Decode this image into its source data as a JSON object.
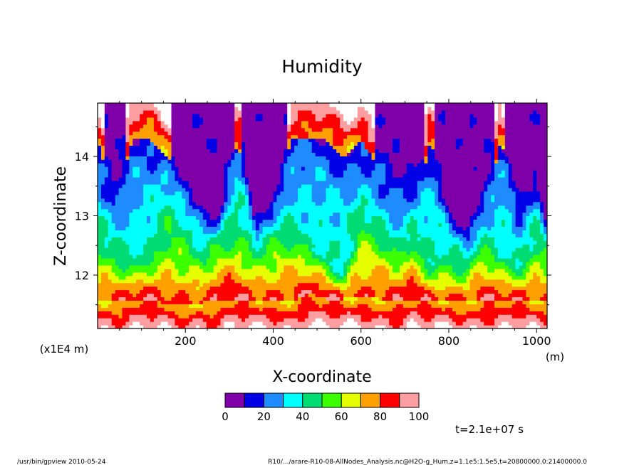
{
  "chart_data": {
    "type": "heatmap",
    "title": "Humidity",
    "xlabel": "X-coordinate",
    "ylabel": "Z-coordinate",
    "x_unit": "(m)",
    "y_unit": "(x1E4 m)",
    "xlim": [
      0,
      1024
    ],
    "ylim": [
      11.1,
      14.9
    ],
    "x_ticks": [
      200,
      400,
      600,
      800,
      1000
    ],
    "x_tick_labels": [
      "200",
      "400",
      "600",
      "800",
      "1000"
    ],
    "y_ticks": [
      12,
      13,
      14
    ],
    "y_tick_labels": [
      "12",
      "13",
      "14"
    ],
    "colorbar": {
      "levels": [
        0,
        10,
        20,
        30,
        40,
        50,
        60,
        70,
        80,
        90,
        100
      ],
      "labels": [
        "0",
        "20",
        "40",
        "60",
        "80",
        "100"
      ],
      "label_values": [
        0,
        20,
        40,
        60,
        80,
        100
      ],
      "colors": [
        "#7f00a8",
        "#0000e6",
        "#1e8cff",
        "#00ffff",
        "#00dc73",
        "#3cff00",
        "#e6ff00",
        "#ffa000",
        "#ff0000",
        "#ff9ea0"
      ],
      "over_color": "#ffffff"
    },
    "columns": [
      {
        "x": 0,
        "low": 11.55,
        "mid": 12.5,
        "top": 14.9
      },
      {
        "x": 40,
        "low": 11.55,
        "mid": 12.3,
        "top": 13.8
      },
      {
        "x": 80,
        "low": 11.6,
        "mid": 12.1,
        "top": 14.9
      },
      {
        "x": 120,
        "low": 11.6,
        "mid": 12.4,
        "top": 14.9
      },
      {
        "x": 160,
        "low": 11.5,
        "mid": 12.9,
        "top": 14.6
      },
      {
        "x": 200,
        "low": 11.5,
        "mid": 12.6,
        "top": 13.9
      },
      {
        "x": 240,
        "low": 11.55,
        "mid": 12.2,
        "top": 13.4
      },
      {
        "x": 280,
        "low": 11.55,
        "mid": 12.7,
        "top": 13.1
      },
      {
        "x": 320,
        "low": 11.6,
        "mid": 12.9,
        "top": 14.9
      },
      {
        "x": 360,
        "low": 11.55,
        "mid": 12.5,
        "top": 12.8
      },
      {
        "x": 400,
        "low": 11.6,
        "mid": 12.6,
        "top": 13.3
      },
      {
        "x": 440,
        "low": 11.55,
        "mid": 12.7,
        "top": 14.9
      },
      {
        "x": 480,
        "low": 11.7,
        "mid": 12.5,
        "top": 14.9
      },
      {
        "x": 520,
        "low": 11.6,
        "mid": 12.3,
        "top": 14.9
      },
      {
        "x": 560,
        "low": 11.6,
        "mid": 12.0,
        "top": 14.6
      },
      {
        "x": 600,
        "low": 11.65,
        "mid": 12.9,
        "top": 14.9
      },
      {
        "x": 640,
        "low": 11.6,
        "mid": 12.7,
        "top": 14.4
      },
      {
        "x": 680,
        "low": 11.55,
        "mid": 12.4,
        "top": 13.9
      },
      {
        "x": 720,
        "low": 11.6,
        "mid": 12.8,
        "top": 13.6
      },
      {
        "x": 760,
        "low": 11.55,
        "mid": 12.2,
        "top": 14.9
      },
      {
        "x": 800,
        "low": 11.6,
        "mid": 12.3,
        "top": 13.2
      },
      {
        "x": 840,
        "low": 11.55,
        "mid": 12.1,
        "top": 12.8
      },
      {
        "x": 880,
        "low": 11.6,
        "mid": 12.6,
        "top": 13.6
      },
      {
        "x": 920,
        "low": 11.55,
        "mid": 12.3,
        "top": 14.9
      },
      {
        "x": 960,
        "low": 11.6,
        "mid": 12.2,
        "top": 13.2
      },
      {
        "x": 1000,
        "low": 11.55,
        "mid": 12.6,
        "top": 13.9
      },
      {
        "x": 1024,
        "low": 11.55,
        "mid": 12.4,
        "top": 12.9
      }
    ]
  },
  "annotations": {
    "time_label": "t=2.1e+07 s",
    "footer_left": "/usr/bin/gpview   2010-05-24",
    "footer_right": "R10/.../arare-R10-08-AllNodes_Analysis.nc@H2O-g_Hum,z=1.1e5:1.5e5,t=20800000.0:21400000.0"
  }
}
